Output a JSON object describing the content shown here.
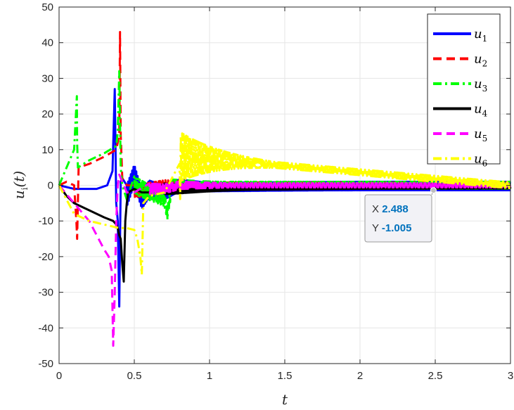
{
  "chart_data": {
    "type": "line",
    "xlabel": "t",
    "ylabel_main": "u",
    "ylabel_sub": "i",
    "ylabel_arg": "(t)",
    "xlim": [
      0,
      3
    ],
    "ylim": [
      -50,
      50
    ],
    "xticks": [
      0,
      0.5,
      1,
      1.5,
      2,
      2.5,
      3
    ],
    "xtick_labels": [
      "0",
      "0.5",
      "1",
      "1.5",
      "2",
      "2.5",
      "3"
    ],
    "yticks": [
      -50,
      -40,
      -30,
      -20,
      -10,
      0,
      10,
      20,
      30,
      40,
      50
    ],
    "ytick_labels": [
      "-50",
      "-40",
      "-30",
      "-20",
      "-10",
      "0",
      "10",
      "20",
      "30",
      "40",
      "50"
    ],
    "grid": true,
    "legend_position": "top-right",
    "series": [
      {
        "name": "u",
        "sub": "1",
        "color": "#0000FF",
        "dash": "solid",
        "x": [
          0,
          0.1,
          0.25,
          0.32,
          0.355,
          0.37,
          0.38,
          0.39,
          0.4,
          0.41,
          0.42,
          0.45,
          0.5,
          0.55,
          0.6,
          0.7,
          0.75,
          0.8,
          1.0,
          1.5,
          2.0,
          2.5,
          3.0
        ],
        "y": [
          0,
          -1,
          -1,
          0,
          4,
          27,
          -5,
          -10,
          -34,
          1,
          2,
          -3,
          3,
          -4,
          -1,
          -2,
          -1,
          0,
          -0.5,
          -0.3,
          -0.2,
          -0.2,
          -0.2
        ],
        "osc_start": 0.45,
        "osc_amp": 3.0
      },
      {
        "name": "u",
        "sub": "2",
        "color": "#FF0000",
        "dash": "dashed",
        "x": [
          0,
          0.05,
          0.1,
          0.115,
          0.12,
          0.13,
          0.2,
          0.3,
          0.38,
          0.39,
          0.4,
          0.405,
          0.41,
          0.42,
          0.45,
          0.5,
          0.6,
          0.7,
          0.8,
          1.0,
          1.5,
          2.0,
          3.0
        ],
        "y": [
          0,
          1,
          0,
          -10,
          -15,
          5,
          6,
          8,
          10,
          12,
          14,
          43,
          14,
          2,
          0,
          -2,
          -1,
          0,
          0,
          0,
          0,
          0,
          0
        ],
        "osc_start": 0.5,
        "osc_amp": 2.0
      },
      {
        "name": "u",
        "sub": "3",
        "color": "#00FF00",
        "dash": "dashdot",
        "x": [
          0,
          0.05,
          0.1,
          0.118,
          0.12,
          0.125,
          0.2,
          0.3,
          0.38,
          0.39,
          0.4,
          0.41,
          0.42,
          0.45,
          0.5,
          0.6,
          0.7,
          0.72,
          0.75,
          0.8,
          1.0,
          3.0
        ],
        "y": [
          0,
          5,
          10,
          25,
          12,
          5,
          7,
          9,
          11,
          15,
          32,
          5,
          0,
          -4,
          0,
          -2,
          -4,
          -8,
          0,
          0,
          0,
          0
        ],
        "osc_start": 0.5,
        "osc_amp": 2.5
      },
      {
        "name": "u",
        "sub": "4",
        "color": "#000000",
        "dash": "solid",
        "x": [
          0,
          0.05,
          0.1,
          0.2,
          0.3,
          0.36,
          0.37,
          0.38,
          0.39,
          0.4,
          0.41,
          0.42,
          0.43,
          0.44,
          0.45,
          0.46,
          0.5,
          0.55,
          0.6,
          0.7,
          0.8,
          1.0,
          1.5,
          2.0,
          3.0
        ],
        "y": [
          0,
          -3,
          -5,
          -7,
          -9,
          -10,
          -10.5,
          -11,
          -12,
          -14,
          -15,
          -22,
          -27,
          -10,
          -5,
          -2,
          -1,
          -2,
          -2,
          -1,
          -1,
          -0.8,
          -0.6,
          -0.4,
          -0.3
        ],
        "osc_start": 0.7,
        "osc_amp": 1.5
      },
      {
        "name": "u",
        "sub": "5",
        "color": "#FF00FF",
        "dash": "dashed",
        "x": [
          0,
          0.1,
          0.2,
          0.3,
          0.33,
          0.35,
          0.36,
          0.37,
          0.38,
          0.39,
          0.4,
          0.42,
          0.45,
          0.5,
          0.6,
          0.7,
          0.8,
          1.0,
          3.0
        ],
        "y": [
          0,
          -5,
          -10,
          -18,
          -20,
          -24,
          -45,
          -30,
          -10,
          0,
          3,
          1,
          -2,
          -2,
          -1,
          -1,
          0,
          0,
          0
        ],
        "osc_start": 0.6,
        "osc_amp": 1.5
      },
      {
        "name": "u",
        "sub": "6",
        "color": "#FFFF00",
        "dash": "dashdot",
        "x": [
          0,
          0.1,
          0.2,
          0.3,
          0.4,
          0.45,
          0.5,
          0.52,
          0.54,
          0.55,
          0.56,
          0.6,
          0.7,
          0.8,
          0.81,
          3.0
        ],
        "y": [
          0,
          -8,
          -10,
          -11,
          -12,
          -12,
          -12.5,
          -15,
          -20,
          -25,
          -5,
          -3,
          -2,
          -1,
          8,
          0
        ],
        "osc_start": 0.8,
        "osc_amp": 7.0,
        "osc_decay": 0.3
      }
    ],
    "datatip": {
      "x_label": "X",
      "x_value": "2.488",
      "y_label": "Y",
      "y_value": "-1.005",
      "x": 2.488,
      "y": -1.005
    }
  }
}
